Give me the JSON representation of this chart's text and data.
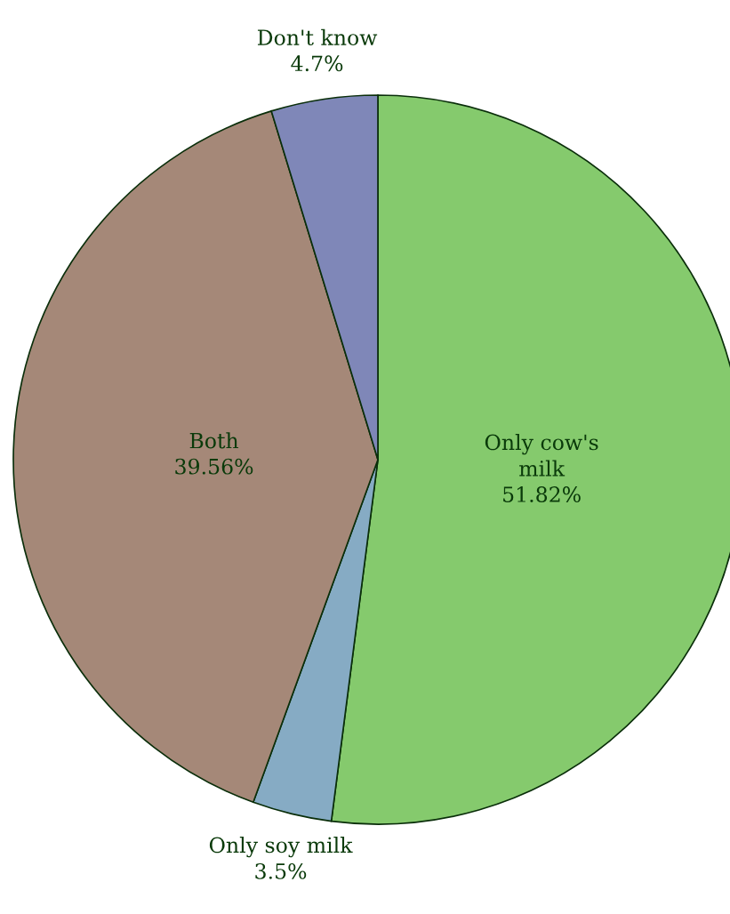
{
  "chart_data": {
    "type": "pie",
    "categories": [
      "Only cow's\nmilk",
      "Only soy milk",
      "Both",
      "Don't know"
    ],
    "values": [
      51.82,
      3.5,
      39.56,
      4.7
    ],
    "colors": [
      "#85ca6d",
      "#86abc4",
      "#a58878",
      "#7f87b8"
    ],
    "value_labels": [
      "51.82%",
      "3.5%",
      "39.56%",
      "4.7%"
    ]
  }
}
